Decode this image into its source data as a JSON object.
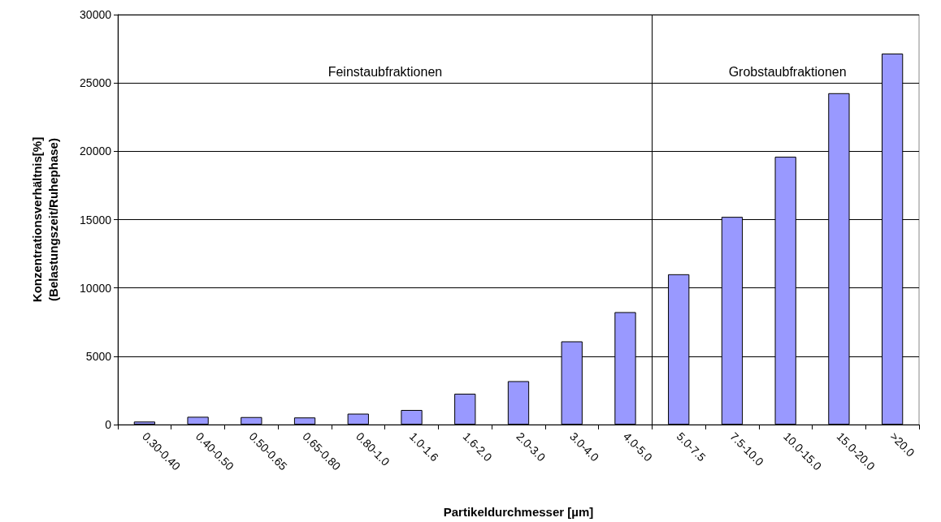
{
  "chart_data": {
    "type": "bar",
    "xlabel": "Partikeldurchmesser [µm]",
    "ylabel": "Konzentrationsverhältnis[%]\n(Belastungszeit/Ruhephase)",
    "categories": [
      "0.30-0.40",
      "0.40-0.50",
      "0.50-0.65",
      "0.65-0.80",
      "0.80-1.0",
      "1.0-1.6",
      "1.6-2.0",
      "2.0-3.0",
      "3.0-4.0",
      "4.0-5.0",
      "5.0-7.5",
      "7.5-10.0",
      "10.0-15.0",
      "15.0-20.0",
      ">20.0"
    ],
    "values": [
      220,
      570,
      550,
      520,
      800,
      1070,
      2260,
      3180,
      6090,
      8230,
      11000,
      15200,
      19600,
      24250,
      27150
    ],
    "color": "#9999ff",
    "ylim": [
      0,
      30000
    ],
    "yticks": [
      0,
      5000,
      10000,
      15000,
      20000,
      25000,
      30000
    ],
    "grid": "y",
    "annotations": [
      "Feinstaubfraktionen",
      "Grobstaubfraktionen"
    ]
  }
}
